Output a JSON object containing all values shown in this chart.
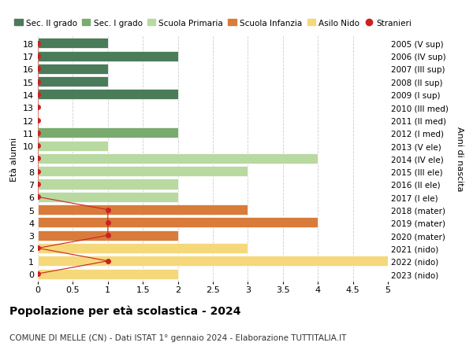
{
  "ages": [
    18,
    17,
    16,
    15,
    14,
    13,
    12,
    11,
    10,
    9,
    8,
    7,
    6,
    5,
    4,
    3,
    2,
    1,
    0
  ],
  "right_labels": [
    "2005 (V sup)",
    "2006 (IV sup)",
    "2007 (III sup)",
    "2008 (II sup)",
    "2009 (I sup)",
    "2010 (III med)",
    "2011 (II med)",
    "2012 (I med)",
    "2013 (V ele)",
    "2014 (IV ele)",
    "2015 (III ele)",
    "2016 (II ele)",
    "2017 (I ele)",
    "2018 (mater)",
    "2019 (mater)",
    "2020 (mater)",
    "2021 (nido)",
    "2022 (nido)",
    "2023 (nido)"
  ],
  "bar_values": [
    1,
    2,
    1,
    1,
    2,
    0,
    0,
    2,
    1,
    4,
    3,
    2,
    2,
    3,
    4,
    2,
    3,
    5,
    2
  ],
  "bar_colors": [
    "#4a7c59",
    "#4a7c59",
    "#4a7c59",
    "#4a7c59",
    "#4a7c59",
    "#7aab6e",
    "#7aab6e",
    "#7aab6e",
    "#b8d9a0",
    "#b8d9a0",
    "#b8d9a0",
    "#b8d9a0",
    "#b8d9a0",
    "#d97b3a",
    "#d97b3a",
    "#d97b3a",
    "#f5d87a",
    "#f5d87a",
    "#f5d87a"
  ],
  "stranieri_values": [
    0,
    0,
    0,
    0,
    0,
    0,
    0,
    0,
    0,
    0,
    0,
    0,
    0,
    1,
    1,
    1,
    0,
    1,
    0
  ],
  "stranieri_color": "#cc2222",
  "legend_labels": [
    "Sec. II grado",
    "Sec. I grado",
    "Scuola Primaria",
    "Scuola Infanzia",
    "Asilo Nido",
    "Stranieri"
  ],
  "legend_colors": [
    "#4a7c59",
    "#7aab6e",
    "#b8d9a0",
    "#d97b3a",
    "#f5d87a",
    "#cc2222"
  ],
  "title": "Popolazione per età scolastica - 2024",
  "subtitle": "COMUNE DI MELLE (CN) - Dati ISTAT 1° gennaio 2024 - Elaborazione TUTTITALIA.IT",
  "ylabel_left": "Età alunni",
  "ylabel_right": "Anni di nascita",
  "xlim": [
    0,
    5.0
  ],
  "xticks": [
    0,
    0.5,
    1.0,
    1.5,
    2.0,
    2.5,
    3.0,
    3.5,
    4.0,
    4.5,
    5.0
  ],
  "bar_height": 0.8,
  "background_color": "#ffffff",
  "grid_color": "#cccccc"
}
